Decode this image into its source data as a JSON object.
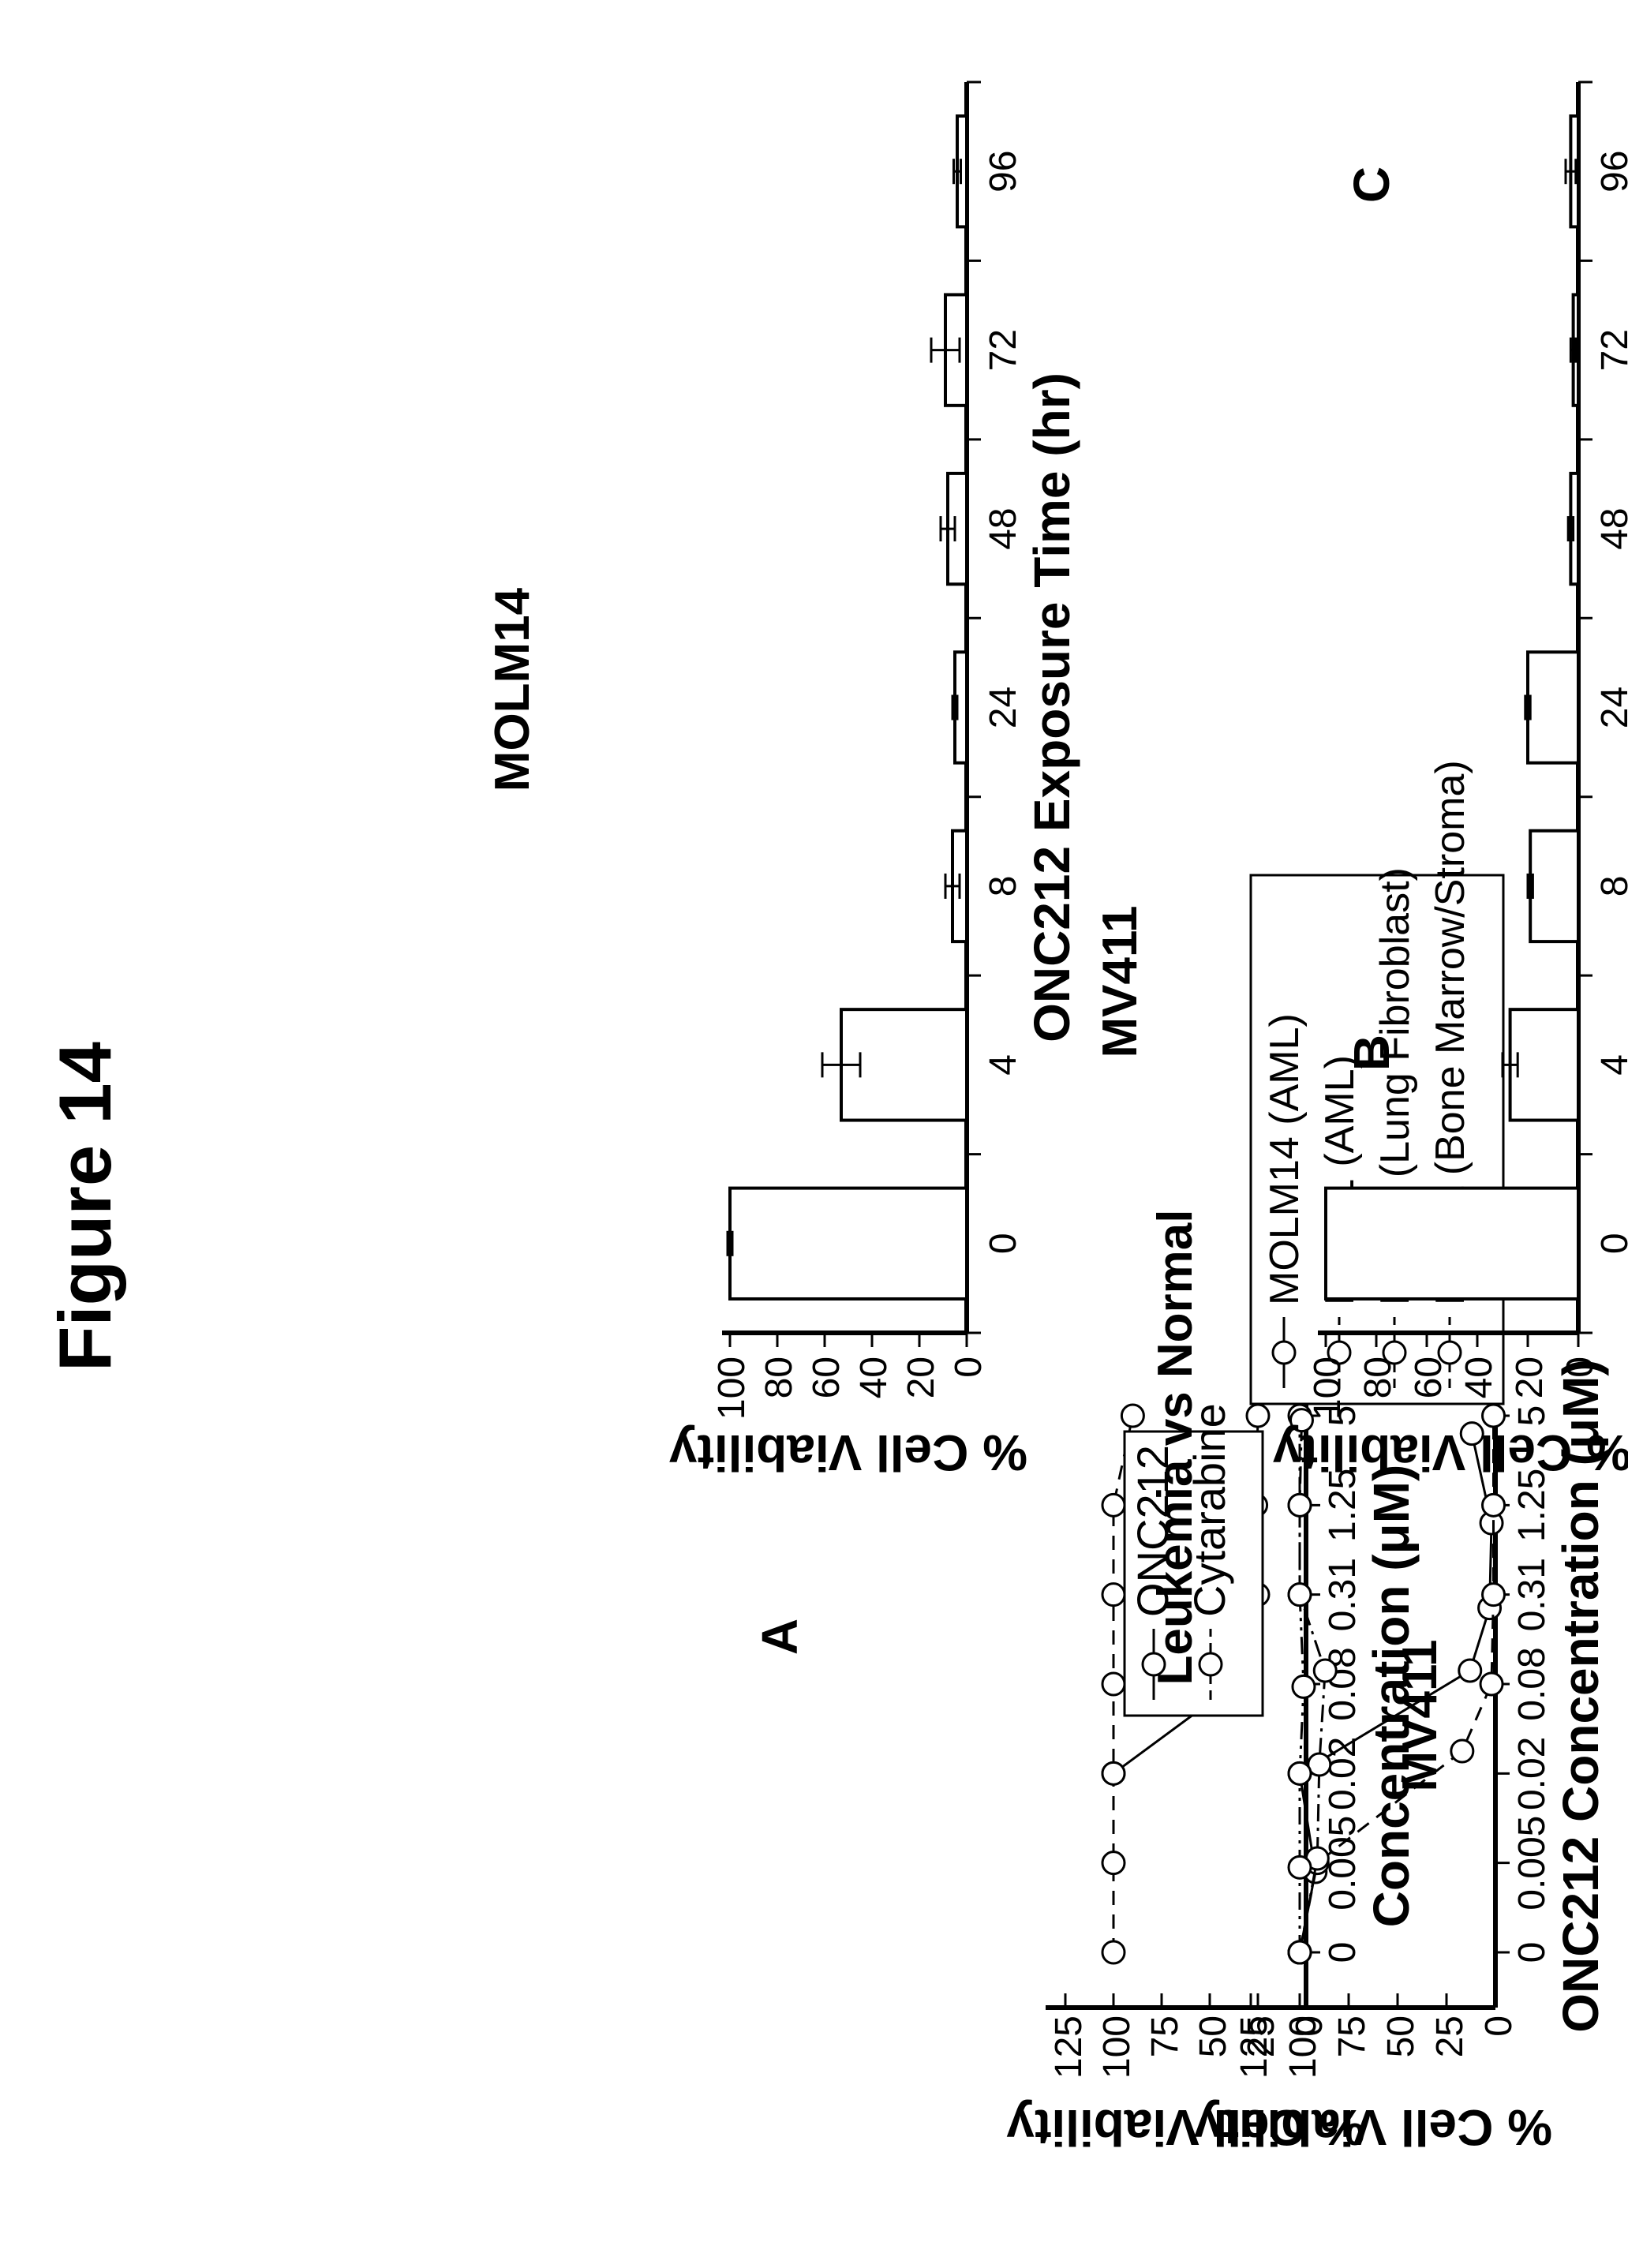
{
  "figure": {
    "title": "Figure 14"
  },
  "panel_letters": {
    "a": "A",
    "b": "B",
    "c": "C"
  },
  "chart_data": [
    {
      "id": "mv411_concentration",
      "type": "line",
      "title": "MV411",
      "xlabel": "Concentration (μM)",
      "ylabel": "% Cell Viability",
      "categories": [
        "0",
        "0.005",
        "0.02",
        "0.08",
        "0.31",
        "1.25",
        "5"
      ],
      "ylim": [
        0,
        125
      ],
      "yticks": [
        "0",
        "25",
        "50",
        "75",
        "100",
        "125"
      ],
      "legend_position": "inside-right",
      "series": [
        {
          "name": "ONC212",
          "style": "solid",
          "values": [
            null,
            null,
            100,
            37,
            25,
            26,
            25
          ]
        },
        {
          "name": "Cytarabine",
          "style": "dashed",
          "values": [
            100,
            100,
            100,
            100,
            100,
            100,
            90
          ]
        }
      ]
    },
    {
      "id": "leukemia_vs_normal",
      "type": "line",
      "title": "Leukemia vs Normal",
      "xlabel": "ONC212 Concentration (μM)",
      "ylabel": "% Cell Viability",
      "categories": [
        "0",
        "0.005",
        "0.02",
        "0.08",
        "0.31",
        "1.25",
        "5"
      ],
      "ylim": [
        0,
        125
      ],
      "yticks": [
        "0",
        "25",
        "50",
        "75",
        "100",
        "125"
      ],
      "legend_position": "top",
      "series": [
        {
          "name": "MOLM14 (AML)",
          "style": "solid",
          "points": [
            [
              0,
              100
            ],
            [
              0.9,
              92
            ],
            [
              2,
              100
            ],
            [
              3.15,
              13
            ],
            [
              3.85,
              3
            ],
            [
              4.8,
              2
            ],
            [
              5.8,
              12
            ]
          ]
        },
        {
          "name": "MV411 (AML)",
          "style": "dashed",
          "points": [
            [
              0,
              100
            ],
            [
              1,
              91
            ],
            [
              2.25,
              17
            ],
            [
              3,
              2
            ],
            [
              4,
              1
            ],
            [
              5,
              1
            ],
            [
              6,
              1
            ]
          ]
        },
        {
          "name": "MRC5 (Lung Fibroblast)",
          "style": "dash-dot",
          "points": [
            [
              0,
              100
            ],
            [
              1.05,
              91
            ],
            [
              2.1,
              90
            ],
            [
              3.15,
              87
            ],
            [
              4,
              100
            ],
            [
              5,
              100
            ],
            [
              6,
              100
            ]
          ]
        },
        {
          "name": "Hs27a (Bone Marrow/Stroma)",
          "style": "dash-dot-dot",
          "points": [
            [
              0,
              100
            ],
            [
              0.95,
              100
            ],
            [
              2,
              100
            ],
            [
              2.97,
              98
            ],
            [
              4,
              100
            ],
            [
              5,
              100
            ],
            [
              5.95,
              99
            ]
          ]
        }
      ]
    },
    {
      "id": "molm14_exposure",
      "type": "bar",
      "title": "MOLM14",
      "xlabel": "ONC212 Exposure Time (hr)",
      "ylabel": "% Cell Viability",
      "categories": [
        "0",
        "4",
        "8",
        "24",
        "48",
        "72",
        "96"
      ],
      "values": [
        100,
        53,
        6,
        5,
        8,
        9,
        4
      ],
      "errors": [
        1,
        8,
        3,
        1,
        3,
        6,
        1.5
      ],
      "ylim": [
        0,
        100
      ],
      "yticks": [
        "0",
        "20",
        "40",
        "60",
        "80",
        "100"
      ]
    },
    {
      "id": "mv411_exposure",
      "type": "bar",
      "title": "MV411",
      "xlabel": "ONC212 Exposure Time (hr)",
      "ylabel": "% Cell Viability",
      "categories": [
        "0",
        "4",
        "8",
        "24",
        "48",
        "72",
        "96"
      ],
      "values": [
        100,
        27,
        19,
        20,
        3,
        2,
        3
      ],
      "errors": [
        0,
        3,
        1,
        1,
        1,
        1,
        2
      ],
      "ylim": [
        0,
        100
      ],
      "yticks": [
        "0",
        "20",
        "40",
        "60",
        "80",
        "100"
      ]
    }
  ]
}
